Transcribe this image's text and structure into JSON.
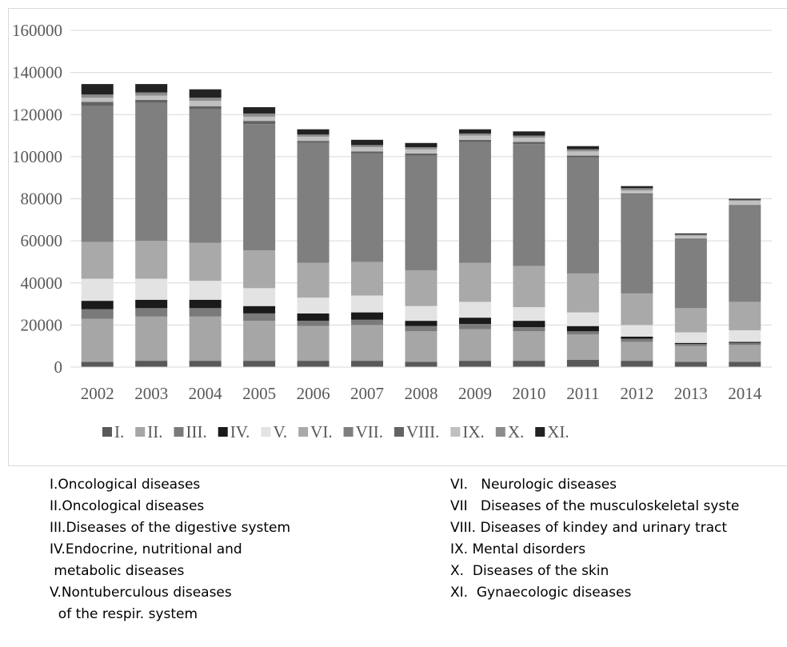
{
  "chart_data": {
    "type": "bar",
    "stacked": true,
    "categories": [
      "2002",
      "2003",
      "2004",
      "2005",
      "2006",
      "2007",
      "2008",
      "2009",
      "2010",
      "2011",
      "2012",
      "2013",
      "2014"
    ],
    "series": [
      {
        "name": "I.",
        "color": "#595959",
        "values": [
          2500,
          3000,
          3000,
          3000,
          3000,
          3000,
          2500,
          3000,
          3000,
          3500,
          3000,
          2500,
          2500
        ]
      },
      {
        "name": "II.",
        "color": "#a6a6a6",
        "values": [
          20500,
          21000,
          21000,
          19000,
          16500,
          17000,
          14500,
          15000,
          14000,
          12000,
          9000,
          7500,
          8000
        ]
      },
      {
        "name": "III.",
        "color": "#7a7a7a",
        "values": [
          4500,
          4000,
          4000,
          3500,
          2500,
          2500,
          2500,
          2500,
          2000,
          1500,
          1500,
          1000,
          1000
        ]
      },
      {
        "name": "IV.",
        "color": "#1a1a1a",
        "values": [
          4000,
          4000,
          4000,
          3500,
          3500,
          3500,
          2500,
          3000,
          3000,
          2500,
          1000,
          500,
          500
        ]
      },
      {
        "name": "V.",
        "color": "#e3e3e3",
        "values": [
          10500,
          10000,
          9000,
          8500,
          7500,
          8000,
          7000,
          7500,
          6500,
          6500,
          5500,
          5000,
          5500
        ]
      },
      {
        "name": "VI.",
        "color": "#a9a9a9",
        "values": [
          17500,
          18000,
          18000,
          18000,
          16500,
          16000,
          17000,
          18500,
          19500,
          18500,
          15000,
          11500,
          13500
        ]
      },
      {
        "name": "VII.",
        "color": "#7f7f7f",
        "values": [
          64500,
          65500,
          63500,
          60000,
          57000,
          51500,
          54500,
          57500,
          58000,
          55000,
          47000,
          32500,
          45500
        ]
      },
      {
        "name": "VIII.",
        "color": "#636363",
        "values": [
          2000,
          1500,
          1500,
          1500,
          1000,
          1000,
          1000,
          1000,
          1000,
          1000,
          500,
          500,
          500
        ]
      },
      {
        "name": "IX.",
        "color": "#c0c0c0",
        "values": [
          2000,
          2000,
          2500,
          2000,
          2000,
          2000,
          2000,
          2000,
          2000,
          2000,
          1500,
          1500,
          2000
        ]
      },
      {
        "name": "X.",
        "color": "#8c8c8c",
        "values": [
          1500,
          1500,
          1500,
          1500,
          1000,
          1000,
          1000,
          1000,
          1000,
          1000,
          1000,
          500,
          500
        ]
      },
      {
        "name": "XI.",
        "color": "#222222",
        "values": [
          5000,
          4000,
          4000,
          3000,
          2500,
          2500,
          2000,
          2000,
          2000,
          1500,
          1000,
          500,
          500
        ]
      }
    ],
    "ylim": [
      0,
      160000
    ],
    "yticks": [
      0,
      20000,
      40000,
      60000,
      80000,
      100000,
      120000,
      140000,
      160000
    ],
    "grid": true,
    "legend": "bottom"
  },
  "notes": {
    "left": [
      "I.Oncological diseases",
      "II.Oncological diseases",
      "III.Diseases of the digestive system",
      "IV.Endocrine, nutritional and",
      " metabolic diseases",
      "V.Nontuberculous diseases",
      "  of the respir. system"
    ],
    "right": [
      "VI.   Neurologic diseases",
      "VII   Diseases of the musculoskeletal syste",
      "VIII. Diseases of kindey and urinary tract",
      "IX. Mental disorders",
      "X.  Diseases of the skin",
      "XI.  Gynaecologic diseases"
    ]
  }
}
